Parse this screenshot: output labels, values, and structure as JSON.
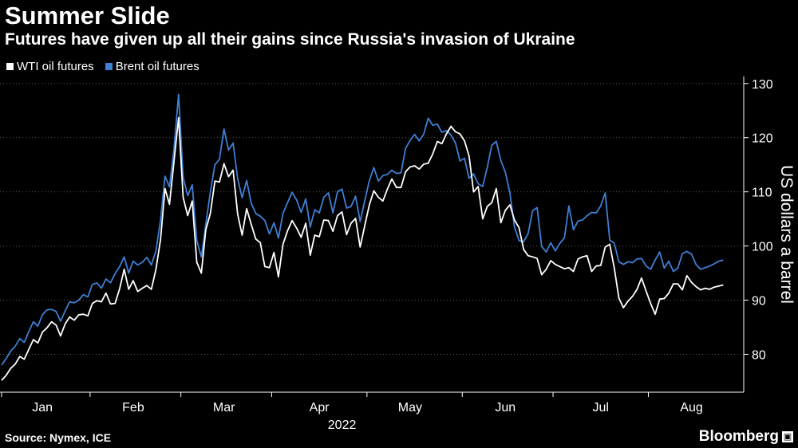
{
  "header": {
    "title": "Summer Slide",
    "subtitle": "Futures have given up all their gains since Russia's invasion of Ukraine"
  },
  "footer": {
    "source": "Source: Nymex, ICE",
    "brand": "Bloomberg"
  },
  "chart_data": {
    "type": "line",
    "title": "Summer Slide",
    "subtitle": "Futures have given up all their gains since Russia's invasion of Ukraine",
    "xlabel": "2022",
    "ylabel": "US dollars a barrel",
    "ylim": [
      73,
      131
    ],
    "yticks": [
      80,
      90,
      100,
      110,
      120,
      130
    ],
    "xlim": [
      0,
      160
    ],
    "month_ticks": [
      {
        "label": "Jan",
        "x": 9
      },
      {
        "label": "Feb",
        "x": 29
      },
      {
        "label": "Mar",
        "x": 49
      },
      {
        "label": "Apr",
        "x": 70
      },
      {
        "label": "May",
        "x": 90
      },
      {
        "label": "Jun",
        "x": 111
      },
      {
        "label": "Jul",
        "x": 132
      },
      {
        "label": "Aug",
        "x": 152
      }
    ],
    "month_boundaries": [
      0,
      19.5,
      39.5,
      59.5,
      80.5,
      101.5,
      121.5,
      142.5
    ],
    "year_label": "2022",
    "legend_position": "top-left",
    "series": [
      {
        "name": "WTI oil futures",
        "color": "#ffffff",
        "x": [
          0,
          1,
          2,
          3,
          4,
          5,
          6,
          7,
          8,
          9,
          10,
          11,
          12,
          13,
          14,
          15,
          16,
          17,
          18,
          19,
          20,
          21,
          22,
          23,
          24,
          25,
          26,
          27,
          28,
          29,
          30,
          31,
          32,
          33,
          34,
          35,
          36,
          37,
          38,
          39,
          40,
          41,
          42,
          43,
          44,
          45,
          46,
          47,
          48,
          49,
          50,
          51,
          52,
          53,
          54,
          55,
          56,
          57,
          58,
          59,
          60,
          61,
          62,
          63,
          64,
          65,
          66,
          67,
          68,
          69,
          70,
          71,
          72,
          73,
          74,
          75,
          76,
          77,
          78,
          79,
          80,
          81,
          82,
          83,
          84,
          85,
          86,
          87,
          88,
          89,
          90,
          91,
          92,
          93,
          94,
          95,
          96,
          97,
          98,
          99,
          100,
          101,
          102,
          103,
          104,
          105,
          106,
          107,
          108,
          109,
          110,
          111,
          112,
          113,
          114,
          115,
          116,
          117,
          118,
          119,
          120,
          121,
          122,
          123,
          124,
          125,
          126,
          127,
          128,
          129,
          130,
          131,
          132,
          133,
          134,
          135,
          136,
          137,
          138,
          139,
          140,
          141,
          142,
          143,
          144,
          145,
          146,
          147,
          148,
          149,
          150,
          151,
          152,
          153,
          154,
          155,
          156,
          157,
          158,
          159
        ],
        "values": [
          75.2,
          76.1,
          77.4,
          78.2,
          79.6,
          79.1,
          80.9,
          82.7,
          82.1,
          84.1,
          84.9,
          86.0,
          85.4,
          83.4,
          85.6,
          86.9,
          86.3,
          87.3,
          87.4,
          87.1,
          89.4,
          89.9,
          89.7,
          91.3,
          89.3,
          89.4,
          92.1,
          95.7,
          92.0,
          93.6,
          91.6,
          92.2,
          92.7,
          92.0,
          95.7,
          101.1,
          110.6,
          107.7,
          115.7,
          123.7,
          109.0,
          105.6,
          108.3,
          97.0,
          95.0,
          103.0,
          106.0,
          112.0,
          111.8,
          115.2,
          112.8,
          114.0,
          105.9,
          102.0,
          106.9,
          104.0,
          101.3,
          100.6,
          96.2,
          96.0,
          98.8,
          94.3,
          100.3,
          102.8,
          104.7,
          103.3,
          101.6,
          104.2,
          98.3,
          102.0,
          101.7,
          104.8,
          104.7,
          102.7,
          105.6,
          106.3,
          102.1,
          104.2,
          105.1,
          99.8,
          103.7,
          107.5,
          110.2,
          109.0,
          108.3,
          110.5,
          112.4,
          110.8,
          110.8,
          113.7,
          114.6,
          114.8,
          114.2,
          115.1,
          115.3,
          117.0,
          119.3,
          118.9,
          120.7,
          122.1,
          121.1,
          120.7,
          119.4,
          116.6,
          110.0,
          111.0,
          105.0,
          107.3,
          108.0,
          110.6,
          104.3,
          106.6,
          107.6,
          104.8,
          103.4,
          99.4,
          98.2,
          98.0,
          97.7,
          94.7,
          95.7,
          97.3,
          96.6,
          96.2,
          95.8,
          96.0,
          95.3,
          97.6,
          98.0,
          98.2,
          95.3,
          96.3,
          96.4,
          99.8,
          100.3,
          95.9,
          90.4,
          88.6,
          89.8,
          90.7,
          92.0,
          94.1,
          91.7,
          89.4,
          87.4,
          90.2,
          90.3,
          91.3,
          93.0,
          93.0,
          91.9,
          94.5,
          93.3,
          92.5,
          91.9,
          92.2,
          92.0,
          92.4,
          92.6,
          92.8
        ]
      },
      {
        "name": "Brent oil futures",
        "color": "#3f7fd4",
        "x": [
          0,
          1,
          2,
          3,
          4,
          5,
          6,
          7,
          8,
          9,
          10,
          11,
          12,
          13,
          14,
          15,
          16,
          17,
          18,
          19,
          20,
          21,
          22,
          23,
          24,
          25,
          26,
          27,
          28,
          29,
          30,
          31,
          32,
          33,
          34,
          35,
          36,
          37,
          38,
          39,
          40,
          41,
          42,
          43,
          44,
          45,
          46,
          47,
          48,
          49,
          50,
          51,
          52,
          53,
          54,
          55,
          56,
          57,
          58,
          59,
          60,
          61,
          62,
          63,
          64,
          65,
          66,
          67,
          68,
          69,
          70,
          71,
          72,
          73,
          74,
          75,
          76,
          77,
          78,
          79,
          80,
          81,
          82,
          83,
          84,
          85,
          86,
          87,
          88,
          89,
          90,
          91,
          92,
          93,
          94,
          95,
          96,
          97,
          98,
          99,
          100,
          101,
          102,
          103,
          104,
          105,
          106,
          107,
          108,
          109,
          110,
          111,
          112,
          113,
          114,
          115,
          116,
          117,
          118,
          119,
          120,
          121,
          122,
          123,
          124,
          125,
          126,
          127,
          128,
          129,
          130,
          131,
          132,
          133,
          134,
          135,
          136,
          137,
          138,
          139,
          140,
          141,
          142,
          143,
          144,
          145,
          146,
          147,
          148,
          149,
          150,
          151,
          152,
          153,
          154,
          155,
          156,
          157,
          158,
          159
        ],
        "values": [
          78.0,
          79.2,
          80.6,
          81.5,
          82.9,
          82.2,
          84.2,
          86.0,
          85.2,
          87.3,
          88.2,
          88.3,
          87.9,
          86.1,
          88.0,
          89.7,
          89.5,
          90.0,
          91.0,
          90.6,
          92.9,
          93.2,
          92.2,
          93.9,
          93.2,
          94.9,
          96.2,
          98.0,
          95.0,
          97.2,
          96.5,
          97.0,
          97.9,
          96.5,
          99.1,
          104.7,
          112.9,
          110.9,
          118.1,
          128.0,
          112.7,
          109.3,
          111.3,
          101.0,
          98.0,
          104.0,
          110.0,
          115.0,
          116.0,
          121.6,
          117.7,
          119.0,
          112.5,
          108.9,
          112.1,
          107.9,
          106.0,
          105.5,
          104.7,
          102.2,
          104.3,
          101.5,
          106.0,
          108.0,
          109.9,
          108.5,
          106.2,
          108.7,
          103.5,
          106.7,
          106.1,
          109.0,
          109.8,
          106.1,
          110.0,
          110.5,
          107.0,
          107.3,
          109.2,
          104.5,
          108.3,
          112.0,
          114.5,
          112.0,
          113.0,
          113.2,
          114.0,
          113.4,
          113.5,
          118.0,
          119.5,
          120.6,
          119.4,
          120.6,
          123.6,
          122.3,
          122.5,
          121.0,
          121.3,
          120.5,
          119.0,
          115.7,
          116.2,
          112.5,
          113.3,
          111.5,
          111.0,
          114.5,
          118.6,
          119.3,
          115.8,
          113.6,
          109.8,
          103.5,
          101.0,
          100.8,
          102.3,
          106.5,
          107.1,
          99.9,
          98.9,
          100.6,
          99.1,
          100.5,
          101.5,
          107.4,
          103.0,
          104.6,
          104.8,
          105.6,
          106.2,
          106.1,
          107.4,
          109.8,
          101.1,
          100.5,
          97.1,
          96.6,
          97.1,
          96.9,
          97.6,
          97.7,
          96.3,
          95.7,
          97.4,
          98.9,
          95.9,
          97.2,
          95.3,
          95.9,
          98.6,
          99.0,
          98.5,
          96.6,
          95.7,
          96.0,
          96.3,
          96.7,
          97.2,
          97.4
        ]
      }
    ]
  }
}
